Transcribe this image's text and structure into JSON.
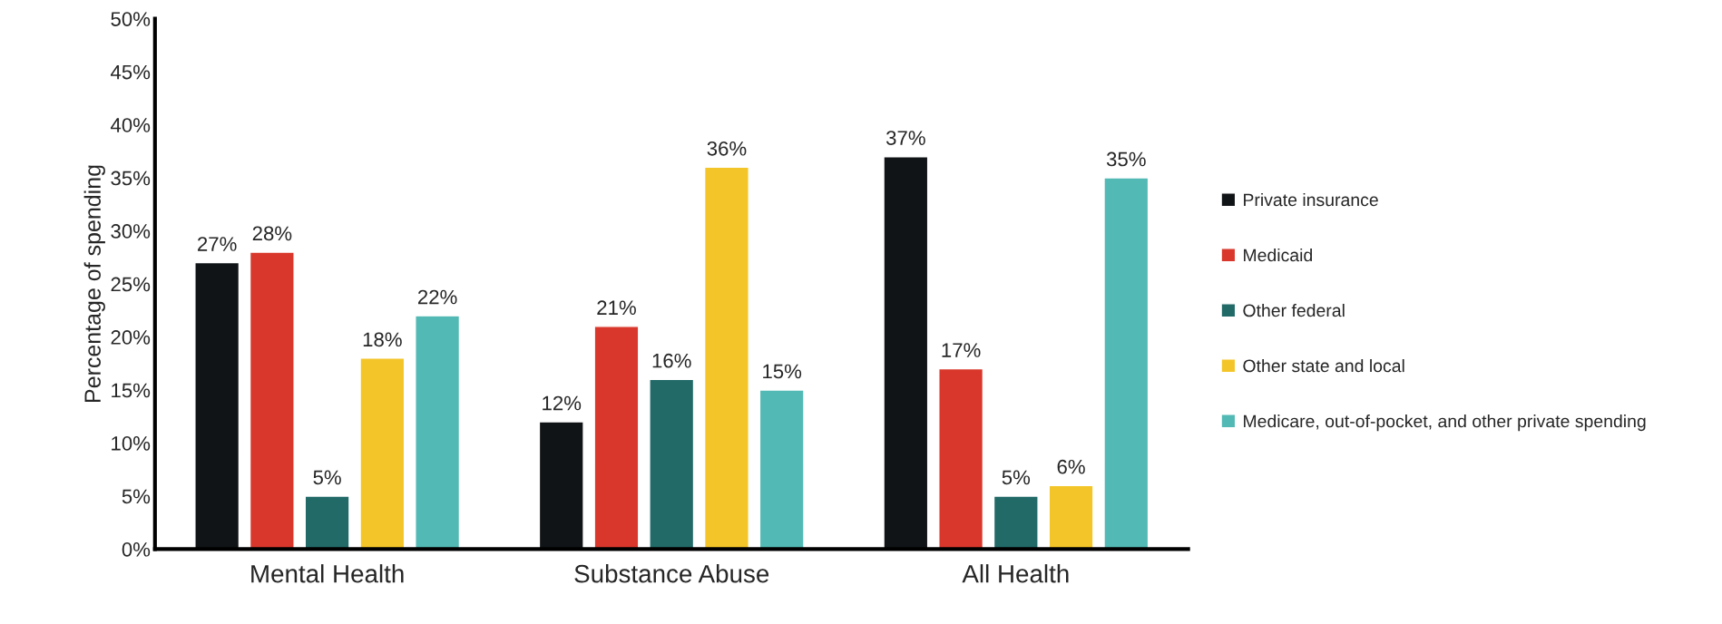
{
  "chart_data": {
    "type": "bar",
    "ylabel": "Percentage of spending",
    "categories": [
      "Mental Health",
      "Substance Abuse",
      "All Health"
    ],
    "series": [
      {
        "name": "Private insurance",
        "color": "#111417",
        "values": [
          27,
          12,
          37
        ],
        "value_labels": [
          "27%",
          "12%",
          "37%"
        ]
      },
      {
        "name": "Medicaid",
        "color": "#d9372b",
        "values": [
          28,
          21,
          17
        ],
        "value_labels": [
          "28%",
          "21%",
          "17%"
        ]
      },
      {
        "name": "Other federal",
        "color": "#216a68",
        "values": [
          5,
          16,
          5
        ],
        "value_labels": [
          "5%",
          "16%",
          "5%"
        ]
      },
      {
        "name": "Other state and local",
        "color": "#f4c528",
        "values": [
          18,
          36,
          6
        ],
        "value_labels": [
          "18%",
          "36%",
          "6%"
        ]
      },
      {
        "name": "Medicare, out-of-pocket, and other private spending",
        "color": "#52b9b4",
        "values": [
          22,
          15,
          35
        ],
        "value_labels": [
          "22%",
          "15%",
          "35%"
        ]
      }
    ],
    "ylim": [
      0,
      50
    ],
    "yticks": [
      {
        "value": 0,
        "label": "0%"
      },
      {
        "value": 5,
        "label": "5%"
      },
      {
        "value": 10,
        "label": "10%"
      },
      {
        "value": 15,
        "label": "15%"
      },
      {
        "value": 20,
        "label": "20%"
      },
      {
        "value": 25,
        "label": "25%"
      },
      {
        "value": 30,
        "label": "30%"
      },
      {
        "value": 35,
        "label": "35%"
      },
      {
        "value": 40,
        "label": "40%"
      },
      {
        "value": 45,
        "label": "45%"
      },
      {
        "value": 50,
        "label": "50%"
      }
    ],
    "grid": false,
    "legend": "right"
  }
}
